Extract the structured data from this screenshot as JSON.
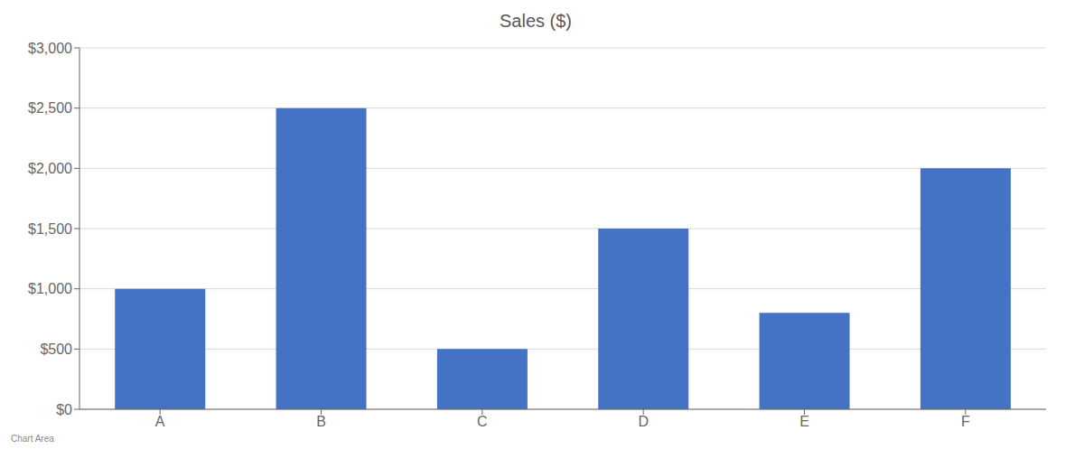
{
  "chart_data": {
    "type": "bar",
    "title": "Sales ($)",
    "categories": [
      "A",
      "B",
      "C",
      "D",
      "E",
      "F"
    ],
    "values": [
      1000,
      2500,
      500,
      1500,
      800,
      2000
    ],
    "color": "#4472C4",
    "ylim": [
      0,
      3000
    ],
    "yticks": [
      {
        "value": 0,
        "label": "$0"
      },
      {
        "value": 500,
        "label": "$500"
      },
      {
        "value": 1000,
        "label": "$1,000"
      },
      {
        "value": 1500,
        "label": "$1,500"
      },
      {
        "value": 2000,
        "label": "$2,000"
      },
      {
        "value": 2500,
        "label": "$2,500"
      },
      {
        "value": 3000,
        "label": "$3,000"
      }
    ],
    "grid": true,
    "annotations": [
      "Chart Area"
    ]
  }
}
